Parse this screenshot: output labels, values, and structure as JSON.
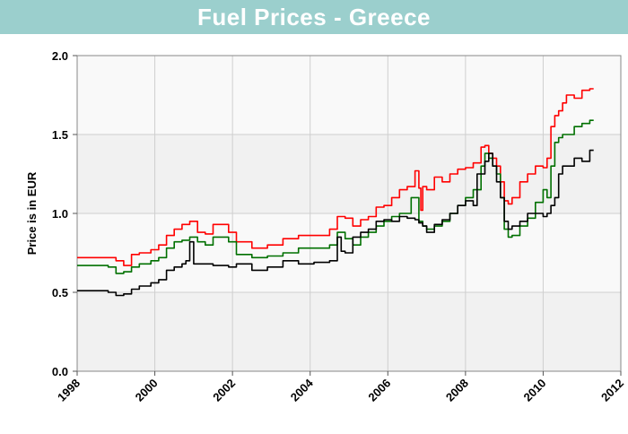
{
  "title": "Fuel Prices - Greece",
  "chart_data": {
    "type": "line",
    "title": "Fuel Prices - Greece",
    "xlabel": "",
    "ylabel": "Price is in EUR",
    "xlim": [
      1998,
      2012
    ],
    "ylim": [
      0.0,
      2.0
    ],
    "x_ticks": [
      "1998",
      "2000",
      "2002",
      "2004",
      "2006",
      "2008",
      "2010",
      "2012"
    ],
    "y_ticks": [
      "0.0",
      "0.5",
      "1.0",
      "1.5",
      "2.0"
    ],
    "grid": true,
    "series": [
      {
        "color": "#ff0000",
        "x": [
          1998.0,
          1999.0,
          1999.2,
          1999.4,
          1999.6,
          1999.9,
          2000.1,
          2000.3,
          2000.5,
          2000.7,
          2000.9,
          2001.1,
          2001.3,
          2001.5,
          2001.9,
          2002.1,
          2002.5,
          2002.9,
          2003.3,
          2003.7,
          2004.1,
          2004.5,
          2004.7,
          2004.9,
          2005.1,
          2005.3,
          2005.5,
          2005.7,
          2005.9,
          2006.1,
          2006.3,
          2006.5,
          2006.7,
          2006.8,
          2006.85,
          2006.9,
          2007.0,
          2007.2,
          2007.4,
          2007.6,
          2007.8,
          2008.0,
          2008.2,
          2008.4,
          2008.5,
          2008.6,
          2008.7,
          2008.8,
          2008.9,
          2009.0,
          2009.1,
          2009.2,
          2009.4,
          2009.6,
          2009.8,
          2010.0,
          2010.1,
          2010.2,
          2010.3,
          2010.4,
          2010.5,
          2010.6,
          2010.8,
          2011.0,
          2011.2,
          2011.3
        ],
        "values": [
          0.72,
          0.7,
          0.67,
          0.74,
          0.75,
          0.77,
          0.8,
          0.86,
          0.9,
          0.93,
          0.95,
          0.88,
          0.87,
          0.93,
          0.88,
          0.82,
          0.78,
          0.8,
          0.84,
          0.86,
          0.86,
          0.9,
          0.98,
          0.97,
          0.92,
          0.96,
          0.98,
          1.04,
          1.05,
          1.1,
          1.15,
          1.17,
          1.27,
          1.16,
          1.02,
          1.17,
          1.15,
          1.23,
          1.2,
          1.25,
          1.28,
          1.29,
          1.32,
          1.42,
          1.43,
          1.38,
          1.35,
          1.3,
          1.2,
          1.08,
          1.06,
          1.1,
          1.2,
          1.25,
          1.3,
          1.29,
          1.35,
          1.55,
          1.62,
          1.65,
          1.7,
          1.75,
          1.73,
          1.78,
          1.79,
          1.79
        ]
      },
      {
        "color": "#007000",
        "x": [
          1998.0,
          1998.8,
          1999.0,
          1999.2,
          1999.4,
          1999.6,
          1999.9,
          2000.1,
          2000.3,
          2000.5,
          2000.7,
          2000.9,
          2001.1,
          2001.3,
          2001.5,
          2001.9,
          2002.1,
          2002.5,
          2002.9,
          2003.3,
          2003.7,
          2004.1,
          2004.5,
          2004.7,
          2004.9,
          2005.1,
          2005.3,
          2005.5,
          2005.7,
          2005.9,
          2006.1,
          2006.3,
          2006.5,
          2006.6,
          2006.7,
          2006.8,
          2006.9,
          2007.0,
          2007.2,
          2007.4,
          2007.6,
          2007.8,
          2008.0,
          2008.2,
          2008.4,
          2008.5,
          2008.6,
          2008.7,
          2008.8,
          2008.9,
          2009.0,
          2009.1,
          2009.2,
          2009.4,
          2009.6,
          2009.8,
          2010.0,
          2010.1,
          2010.2,
          2010.3,
          2010.4,
          2010.5,
          2010.6,
          2010.8,
          2011.0,
          2011.2,
          2011.3
        ],
        "values": [
          0.67,
          0.66,
          0.62,
          0.63,
          0.66,
          0.68,
          0.7,
          0.72,
          0.78,
          0.82,
          0.83,
          0.85,
          0.82,
          0.8,
          0.85,
          0.82,
          0.74,
          0.72,
          0.73,
          0.75,
          0.78,
          0.78,
          0.8,
          0.88,
          0.84,
          0.8,
          0.85,
          0.88,
          0.92,
          0.95,
          0.98,
          1.0,
          1.0,
          1.1,
          1.1,
          0.95,
          0.92,
          0.9,
          0.92,
          0.95,
          1.0,
          1.05,
          1.1,
          1.15,
          1.3,
          1.38,
          1.35,
          1.3,
          1.25,
          1.1,
          0.9,
          0.85,
          0.86,
          0.92,
          0.97,
          1.07,
          1.15,
          1.1,
          1.3,
          1.45,
          1.48,
          1.5,
          1.5,
          1.55,
          1.57,
          1.59,
          1.59
        ]
      },
      {
        "color": "#000000",
        "x": [
          1998.0,
          1998.8,
          1999.0,
          1999.2,
          1999.4,
          1999.6,
          1999.9,
          2000.1,
          2000.3,
          2000.5,
          2000.7,
          2000.8,
          2000.9,
          2001.0,
          2001.3,
          2001.5,
          2001.9,
          2002.1,
          2002.5,
          2002.9,
          2003.3,
          2003.7,
          2004.1,
          2004.5,
          2004.7,
          2004.8,
          2004.9,
          2005.1,
          2005.3,
          2005.5,
          2005.7,
          2005.9,
          2006.1,
          2006.3,
          2006.5,
          2006.7,
          2006.8,
          2006.9,
          2007.0,
          2007.2,
          2007.4,
          2007.6,
          2007.8,
          2008.0,
          2008.2,
          2008.3,
          2008.4,
          2008.5,
          2008.6,
          2008.7,
          2008.8,
          2008.9,
          2009.0,
          2009.1,
          2009.2,
          2009.4,
          2009.6,
          2009.8,
          2010.0,
          2010.1,
          2010.2,
          2010.3,
          2010.4,
          2010.5,
          2010.6,
          2010.8,
          2011.0,
          2011.2,
          2011.3
        ],
        "values": [
          0.51,
          0.5,
          0.48,
          0.49,
          0.52,
          0.54,
          0.56,
          0.58,
          0.64,
          0.66,
          0.68,
          0.7,
          0.82,
          0.68,
          0.68,
          0.67,
          0.66,
          0.68,
          0.64,
          0.66,
          0.7,
          0.68,
          0.69,
          0.7,
          0.85,
          0.76,
          0.75,
          0.85,
          0.88,
          0.9,
          0.95,
          0.96,
          0.95,
          0.98,
          0.97,
          0.96,
          0.94,
          0.92,
          0.88,
          0.93,
          0.96,
          1.0,
          1.05,
          1.08,
          1.05,
          1.25,
          1.25,
          1.33,
          1.38,
          1.3,
          1.2,
          1.1,
          0.95,
          0.9,
          0.92,
          0.95,
          1.0,
          1.0,
          0.98,
          1.0,
          1.05,
          1.1,
          1.25,
          1.3,
          1.3,
          1.35,
          1.33,
          1.4,
          1.4
        ]
      }
    ]
  }
}
